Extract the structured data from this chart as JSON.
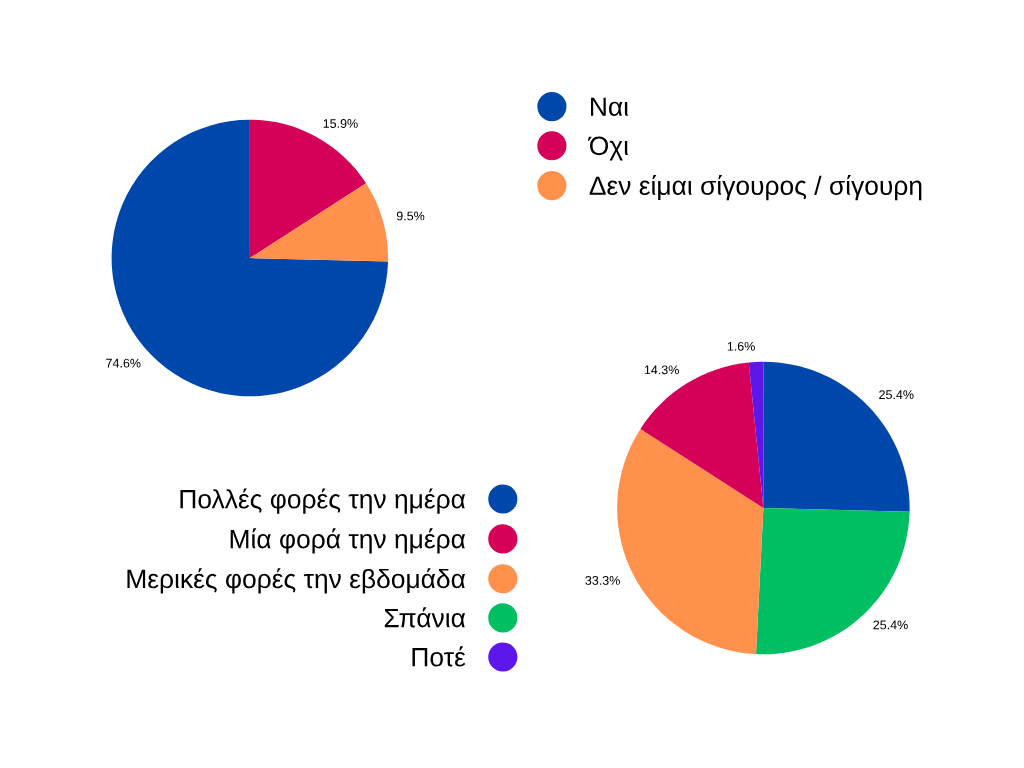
{
  "chart_data": [
    {
      "type": "pie",
      "categories": [
        "Ναι",
        "Όχι",
        "Δεν είμαι σίγουρος / σίγουρη"
      ],
      "values": [
        74.6,
        15.9,
        9.5
      ],
      "colors": [
        "#0047ab",
        "#d50057",
        "#ff914d"
      ],
      "value_labels": [
        "74.6%",
        "15.9%",
        "9.5%"
      ],
      "legend": "right"
    },
    {
      "type": "pie",
      "categories": [
        "Πολλές φορές την ημέρα",
        "Μία φορά την ημέρα",
        "Μερικές φορές την εβδομάδα",
        "Σπάνια",
        "Ποτέ"
      ],
      "values": [
        25.4,
        14.3,
        33.3,
        25.4,
        1.6
      ],
      "colors": [
        "#0047ab",
        "#d50057",
        "#ff914d",
        "#00bf63",
        "#5e17eb"
      ],
      "value_labels": [
        "25.4%",
        "14.3%",
        "33.3%",
        "25.4%",
        "1.6%"
      ],
      "legend": "left"
    }
  ]
}
